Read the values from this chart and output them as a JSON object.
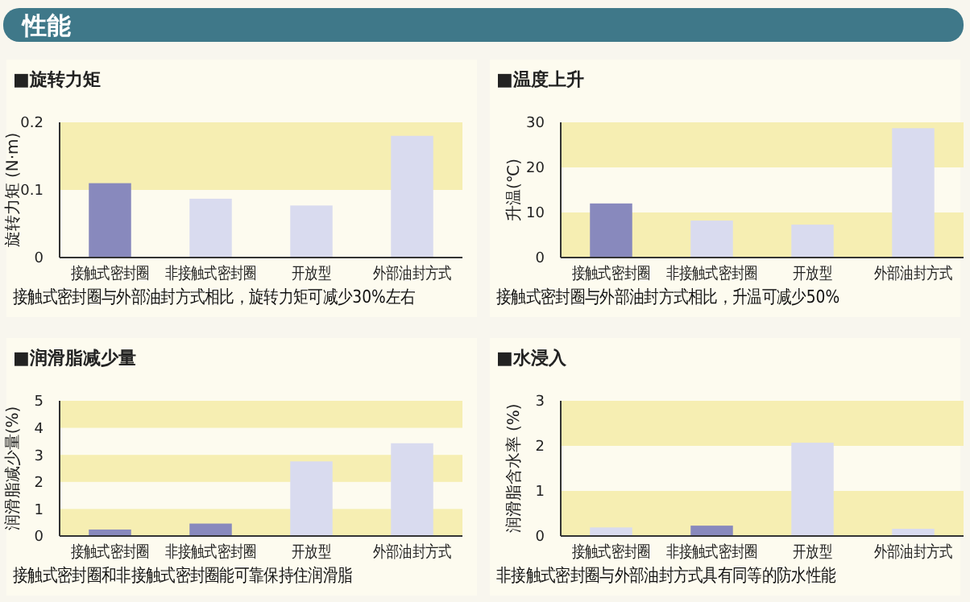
{
  "chart_data": [
    {
      "type": "other",
      "title": "性能"
    },
    {
      "type": "bar",
      "title": "■旋转力矩",
      "ylabel": "旋转力矩 (N·m)",
      "categories": [
        "接触式密封圈",
        "非接触式密封圈",
        "开放型",
        "外部油封方式"
      ],
      "values": [
        0.11,
        0.087,
        0.077,
        0.18
      ],
      "colors": [
        "#8889bd",
        "#d9dbef",
        "#d9dbef",
        "#d9dbef"
      ],
      "ylim": [
        0,
        0.2
      ],
      "yticks": [
        0,
        0.1,
        0.2
      ],
      "bands": [
        {
          "axis": "y",
          "from": 0.1,
          "to": 0.2,
          "color": "#f6eeb2"
        }
      ],
      "annotations": [
        "接触式密封圈与外部油封方式相比，旋转力矩可减少30%左右"
      ]
    },
    {
      "type": "bar",
      "title": "■温度上升",
      "ylabel": "升温(℃)",
      "categories": [
        "接触式密封圈",
        "非接触式密封圈",
        "开放型",
        "外部油封方式"
      ],
      "values": [
        12,
        8.2,
        7.3,
        28.7
      ],
      "colors": [
        "#8889bd",
        "#d9dbef",
        "#d9dbef",
        "#d9dbef"
      ],
      "ylim": [
        0,
        30
      ],
      "yticks": [
        0,
        10,
        20,
        30
      ],
      "bands": [
        {
          "axis": "y",
          "from": 0,
          "to": 10,
          "color": "#f6eeb2"
        },
        {
          "axis": "y",
          "from": 20,
          "to": 30,
          "color": "#f6eeb2"
        }
      ],
      "annotations": [
        "接触式密封圈与外部油封方式相比，升温可减少50%"
      ]
    },
    {
      "type": "bar",
      "title": "■润滑脂减少量",
      "ylabel": "润滑脂减少量(%)",
      "categories": [
        "接触式密封圈",
        "非接触式密封圈",
        "开放型",
        "外部油封方式"
      ],
      "values": [
        0.24,
        0.46,
        2.76,
        3.43
      ],
      "colors": [
        "#8889bd",
        "#8889bd",
        "#d9dbef",
        "#d9dbef"
      ],
      "ylim": [
        0,
        5
      ],
      "yticks": [
        0,
        1,
        2,
        3,
        4,
        5
      ],
      "bands": [
        {
          "axis": "y",
          "from": 0,
          "to": 1,
          "color": "#f6eeb2"
        },
        {
          "axis": "y",
          "from": 2,
          "to": 3,
          "color": "#f6eeb2"
        },
        {
          "axis": "y",
          "from": 4,
          "to": 5,
          "color": "#f6eeb2"
        }
      ],
      "annotations": [
        "接触式密封圈和非接触式密封圈能可靠保持住润滑脂"
      ]
    },
    {
      "type": "bar",
      "title": "■水浸入",
      "ylabel": "润滑脂含水率 (%)",
      "categories": [
        "接触式密封圈",
        "非接触式密封圈",
        "开放型",
        "外部油封方式"
      ],
      "values": [
        0.19,
        0.23,
        2.07,
        0.16
      ],
      "colors": [
        "#d9dbef",
        "#8889bd",
        "#d9dbef",
        "#d9dbef"
      ],
      "ylim": [
        0,
        3
      ],
      "yticks": [
        0,
        1,
        2,
        3
      ],
      "bands": [
        {
          "axis": "y",
          "from": 0,
          "to": 1,
          "color": "#f6eeb2"
        },
        {
          "axis": "y",
          "from": 2,
          "to": 3,
          "color": "#f6eeb2"
        }
      ],
      "annotations": [
        "非接触式密封圈与外部油封方式具有同等的防水性能"
      ]
    }
  ]
}
